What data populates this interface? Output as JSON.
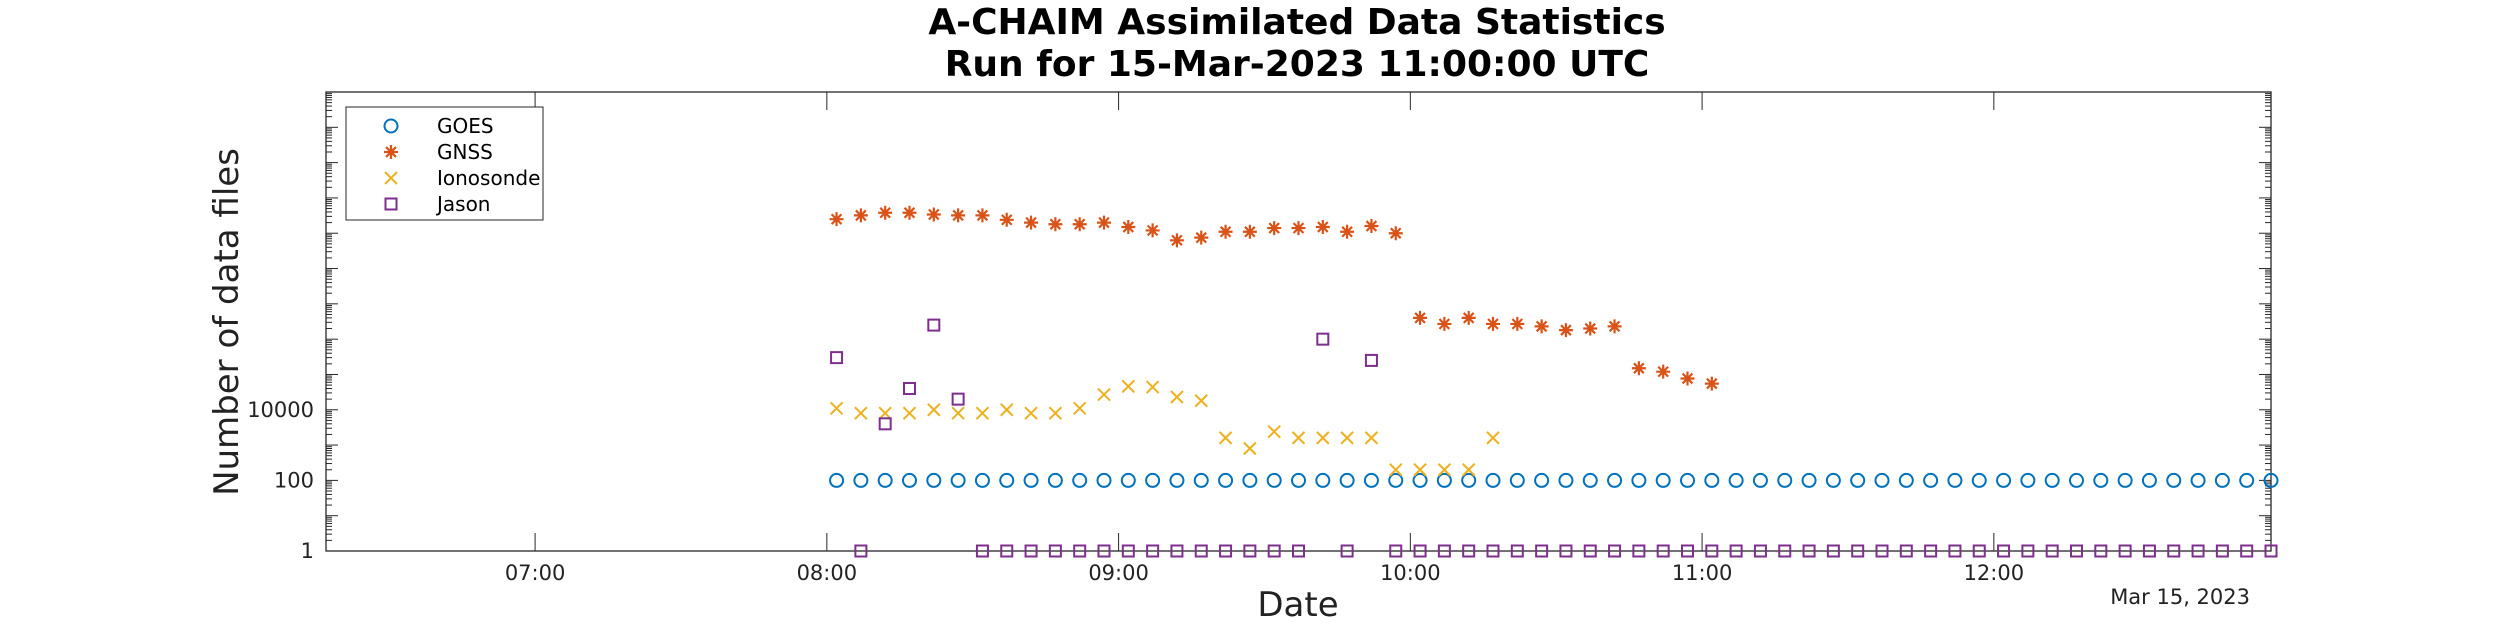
{
  "chart_data": {
    "type": "scatter",
    "title": [
      "A-CHAIM Assimilated Data Statistics",
      "Run for 15-Mar-2023 11:00:00 UTC"
    ],
    "xlabel": "Date",
    "ylabel": "Number of data files",
    "date_label": "Mar 15, 2023",
    "x_range": [
      "06:17",
      "12:57"
    ],
    "x_ticks": [
      "07:00",
      "08:00",
      "09:00",
      "10:00",
      "11:00",
      "12:00"
    ],
    "y_scale": "log",
    "y_range": [
      1,
      10000000000000
    ],
    "y_ticks": [
      {
        "value": 1,
        "label": "1"
      },
      {
        "value": 100,
        "label": "100"
      },
      {
        "value": 10000,
        "label": "10000"
      }
    ],
    "grid": false,
    "legend": "top-left",
    "series": [
      {
        "name": "GOES",
        "marker": "circle",
        "color": "#0072BD",
        "points": [
          [
            "08:02",
            100
          ],
          [
            "08:07",
            100
          ],
          [
            "08:12",
            100
          ],
          [
            "08:17",
            100
          ],
          [
            "08:22",
            100
          ],
          [
            "08:27",
            100
          ],
          [
            "08:32",
            100
          ],
          [
            "08:37",
            100
          ],
          [
            "08:42",
            100
          ],
          [
            "08:47",
            100
          ],
          [
            "08:52",
            100
          ],
          [
            "08:57",
            100
          ],
          [
            "09:02",
            100
          ],
          [
            "09:07",
            100
          ],
          [
            "09:12",
            100
          ],
          [
            "09:17",
            100
          ],
          [
            "09:22",
            100
          ],
          [
            "09:27",
            100
          ],
          [
            "09:32",
            100
          ],
          [
            "09:37",
            100
          ],
          [
            "09:42",
            100
          ],
          [
            "09:47",
            100
          ],
          [
            "09:52",
            100
          ],
          [
            "09:57",
            100
          ],
          [
            "10:02",
            100
          ],
          [
            "10:07",
            100
          ],
          [
            "10:12",
            100
          ],
          [
            "10:17",
            100
          ],
          [
            "10:22",
            100
          ],
          [
            "10:27",
            100
          ],
          [
            "10:32",
            100
          ],
          [
            "10:37",
            100
          ],
          [
            "10:42",
            100
          ],
          [
            "10:47",
            100
          ],
          [
            "10:52",
            100
          ],
          [
            "10:57",
            100
          ],
          [
            "11:02",
            100
          ],
          [
            "11:07",
            100
          ],
          [
            "11:12",
            100
          ],
          [
            "11:17",
            100
          ],
          [
            "11:22",
            100
          ],
          [
            "11:27",
            100
          ],
          [
            "11:32",
            100
          ],
          [
            "11:37",
            100
          ],
          [
            "11:42",
            100
          ],
          [
            "11:47",
            100
          ],
          [
            "11:52",
            100
          ],
          [
            "11:57",
            100
          ],
          [
            "12:02",
            100
          ],
          [
            "12:07",
            100
          ],
          [
            "12:12",
            100
          ],
          [
            "12:17",
            100
          ],
          [
            "12:22",
            100
          ],
          [
            "12:27",
            100
          ],
          [
            "12:32",
            100
          ],
          [
            "12:37",
            100
          ],
          [
            "12:42",
            100
          ],
          [
            "12:47",
            100
          ],
          [
            "12:52",
            100
          ],
          [
            "12:57",
            100
          ]
        ]
      },
      {
        "name": "GNSS",
        "marker": "asterisk",
        "color": "#D95319",
        "points": [
          [
            "08:02",
            2500000000
          ],
          [
            "08:07",
            3200000000
          ],
          [
            "08:12",
            3800000000
          ],
          [
            "08:17",
            3800000000
          ],
          [
            "08:22",
            3400000000
          ],
          [
            "08:27",
            3200000000
          ],
          [
            "08:32",
            3200000000
          ],
          [
            "08:37",
            2400000000
          ],
          [
            "08:42",
            2000000000
          ],
          [
            "08:47",
            1800000000
          ],
          [
            "08:52",
            1800000000
          ],
          [
            "08:57",
            2000000000
          ],
          [
            "09:02",
            1500000000
          ],
          [
            "09:07",
            1200000000
          ],
          [
            "09:12",
            630000000
          ],
          [
            "09:17",
            750000000
          ],
          [
            "09:22",
            1100000000
          ],
          [
            "09:27",
            1100000000
          ],
          [
            "09:32",
            1400000000
          ],
          [
            "09:37",
            1400000000
          ],
          [
            "09:42",
            1500000000
          ],
          [
            "09:47",
            1100000000
          ],
          [
            "09:52",
            1600000000
          ],
          [
            "09:57",
            1000000000
          ],
          [
            "10:02",
            4000000
          ],
          [
            "10:07",
            2700000
          ],
          [
            "10:12",
            4000000
          ],
          [
            "10:17",
            2700000
          ],
          [
            "10:22",
            2700000
          ],
          [
            "10:27",
            2300000
          ],
          [
            "10:32",
            1800000
          ],
          [
            "10:37",
            2000000
          ],
          [
            "10:42",
            2300000
          ],
          [
            "10:47",
            150000
          ],
          [
            "10:52",
            120000
          ],
          [
            "10:57",
            77000
          ],
          [
            "11:02",
            55000
          ]
        ]
      },
      {
        "name": "Ionosonde",
        "marker": "x",
        "color": "#EDB120",
        "points": [
          [
            "08:02",
            11000
          ],
          [
            "08:07",
            8000
          ],
          [
            "08:12",
            8000
          ],
          [
            "08:17",
            8000
          ],
          [
            "08:22",
            10000
          ],
          [
            "08:27",
            8000
          ],
          [
            "08:32",
            8000
          ],
          [
            "08:37",
            10000
          ],
          [
            "08:42",
            8000
          ],
          [
            "08:47",
            8000
          ],
          [
            "08:52",
            11000
          ],
          [
            "08:57",
            27000
          ],
          [
            "09:02",
            46000
          ],
          [
            "09:07",
            44000
          ],
          [
            "09:12",
            23000
          ],
          [
            "09:17",
            18000
          ],
          [
            "09:22",
            1600
          ],
          [
            "09:27",
            800
          ],
          [
            "09:32",
            2400
          ],
          [
            "09:37",
            1600
          ],
          [
            "09:42",
            1600
          ],
          [
            "09:47",
            1600
          ],
          [
            "09:52",
            1600
          ],
          [
            "09:57",
            200
          ],
          [
            "10:02",
            200
          ],
          [
            "10:07",
            200
          ],
          [
            "10:12",
            200
          ],
          [
            "10:17",
            1600
          ]
        ]
      },
      {
        "name": "Jason",
        "marker": "square",
        "color": "#7E2F8E",
        "points": [
          [
            "08:02",
            300000
          ],
          [
            "08:07",
            1
          ],
          [
            "08:12",
            4000
          ],
          [
            "08:17",
            40000
          ],
          [
            "08:22",
            2500000
          ],
          [
            "08:27",
            20000
          ],
          [
            "08:32",
            1
          ],
          [
            "08:37",
            1
          ],
          [
            "08:42",
            1
          ],
          [
            "08:47",
            1
          ],
          [
            "08:52",
            1
          ],
          [
            "08:57",
            1
          ],
          [
            "09:02",
            1
          ],
          [
            "09:07",
            1
          ],
          [
            "09:12",
            1
          ],
          [
            "09:17",
            1
          ],
          [
            "09:22",
            1
          ],
          [
            "09:27",
            1
          ],
          [
            "09:32",
            1
          ],
          [
            "09:37",
            1
          ],
          [
            "09:42",
            1000000
          ],
          [
            "09:47",
            1
          ],
          [
            "09:52",
            250000
          ],
          [
            "09:57",
            1
          ],
          [
            "10:02",
            1
          ],
          [
            "10:07",
            1
          ],
          [
            "10:12",
            1
          ],
          [
            "10:17",
            1
          ],
          [
            "10:22",
            1
          ],
          [
            "10:27",
            1
          ],
          [
            "10:32",
            1
          ],
          [
            "10:37",
            1
          ],
          [
            "10:42",
            1
          ],
          [
            "10:47",
            1
          ],
          [
            "10:52",
            1
          ],
          [
            "10:57",
            1
          ],
          [
            "11:02",
            1
          ],
          [
            "11:07",
            1
          ],
          [
            "11:12",
            1
          ],
          [
            "11:17",
            1
          ],
          [
            "11:22",
            1
          ],
          [
            "11:27",
            1
          ],
          [
            "11:32",
            1
          ],
          [
            "11:37",
            1
          ],
          [
            "11:42",
            1
          ],
          [
            "11:47",
            1
          ],
          [
            "11:52",
            1
          ],
          [
            "11:57",
            1
          ],
          [
            "12:02",
            1
          ],
          [
            "12:07",
            1
          ],
          [
            "12:12",
            1
          ],
          [
            "12:17",
            1
          ],
          [
            "12:22",
            1
          ],
          [
            "12:27",
            1
          ],
          [
            "12:32",
            1
          ],
          [
            "12:37",
            1
          ],
          [
            "12:42",
            1
          ],
          [
            "12:47",
            1
          ],
          [
            "12:52",
            1
          ],
          [
            "12:57",
            1
          ]
        ]
      }
    ]
  }
}
